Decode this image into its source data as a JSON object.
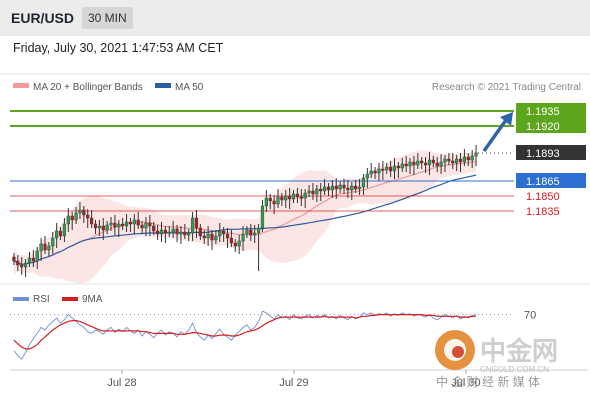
{
  "header": {
    "pair": "EUR/USD",
    "timeframe": "30 MIN",
    "datetime": "Friday, July 30, 2021 1:47:53 AM CET"
  },
  "legend": {
    "ma20_label": "MA 20 + Bollinger Bands",
    "ma50_label": "MA 50",
    "ma20_color": "#f29a9a",
    "ma50_color": "#2b5fa3",
    "credit": "Research © 2021 Trading Central"
  },
  "rsi_legend": {
    "rsi_label": "RSI",
    "ma_label": "9MA",
    "rsi_color": "#6f8fd8",
    "ma_color": "#d42020"
  },
  "watermark": {
    "brand": "中金网",
    "domain": "CNGOLD.COM.CN",
    "tagline": "中 金 财 经 新 媒 体"
  },
  "chart_data": [
    {
      "type": "candlestick",
      "title": "EUR/USD 30 MIN",
      "ylim": [
        1.177,
        1.195
      ],
      "xlabel": "",
      "ylabel": "",
      "x_ticks": [
        "Jul 28",
        "Jul 29",
        "Jul 30"
      ],
      "levels": [
        {
          "value": 1.1935,
          "label": "1.1935",
          "kind": "resistance",
          "color": "#5ea51e"
        },
        {
          "value": 1.192,
          "label": "1.1920",
          "kind": "resistance",
          "color": "#5ea51e"
        },
        {
          "value": 1.1893,
          "label": "1.1893",
          "kind": "last_price",
          "color": "#333333"
        },
        {
          "value": 1.1865,
          "label": "1.1865",
          "kind": "pivot",
          "color": "#2c6fd1"
        },
        {
          "value": 1.185,
          "label": "1.1850",
          "kind": "support",
          "color": "#d42020"
        },
        {
          "value": 1.1835,
          "label": "1.1835",
          "kind": "support",
          "color": "#d42020"
        }
      ],
      "closes": [
        1.1785,
        1.1781,
        1.1779,
        1.1783,
        1.1788,
        1.1785,
        1.1795,
        1.1802,
        1.1796,
        1.18,
        1.1808,
        1.1815,
        1.181,
        1.1822,
        1.183,
        1.1826,
        1.1833,
        1.1836,
        1.1831,
        1.1828,
        1.1822,
        1.1818,
        1.182,
        1.1816,
        1.1821,
        1.1823,
        1.1819,
        1.1822,
        1.182,
        1.1824,
        1.1822,
        1.1826,
        1.1821,
        1.1818,
        1.1823,
        1.182,
        1.1815,
        1.1812,
        1.1816,
        1.1813,
        1.1814,
        1.1817,
        1.1812,
        1.1814,
        1.1811,
        1.1813,
        1.1828,
        1.1818,
        1.181,
        1.1808,
        1.1812,
        1.1806,
        1.181,
        1.1815,
        1.1812,
        1.1808,
        1.1803,
        1.18,
        1.1805,
        1.1812,
        1.1816,
        1.1811,
        1.1813,
        1.1818,
        1.184,
        1.1848,
        1.1845,
        1.1842,
        1.1849,
        1.1846,
        1.185,
        1.1847,
        1.1852,
        1.1849,
        1.1848,
        1.1853,
        1.1855,
        1.1852,
        1.1857,
        1.1855,
        1.1859,
        1.1856,
        1.186,
        1.1857,
        1.1861,
        1.1858,
        1.1856,
        1.186,
        1.1857,
        1.1859,
        1.1868,
        1.1872,
        1.1875,
        1.1873,
        1.1877,
        1.1876,
        1.1879,
        1.1875,
        1.188,
        1.1878,
        1.1882,
        1.188,
        1.1884,
        1.1881,
        1.1885,
        1.1883,
        1.1881,
        1.1886,
        1.1883,
        1.188,
        1.1884,
        1.1887,
        1.1885,
        1.1883,
        1.1887,
        1.1884,
        1.1889,
        1.1886,
        1.189,
        1.1893
      ],
      "ma20_bands_note": "MA 20 with Bollinger Bands (pink envelope)",
      "forecast_arrow": {
        "from": 1.1893,
        "to": 1.1935,
        "direction": "up"
      }
    },
    {
      "type": "line",
      "title": "RSI",
      "ylim": [
        0,
        100
      ],
      "levels": [
        {
          "value": 70,
          "label": "70"
        }
      ],
      "series": [
        {
          "name": "RSI",
          "values": [
            28,
            22,
            18,
            26,
            35,
            42,
            48,
            55,
            52,
            58,
            62,
            66,
            60,
            64,
            70,
            66,
            62,
            58,
            55,
            50,
            48,
            52,
            50,
            47,
            52,
            55,
            49,
            53,
            50,
            55,
            51,
            48,
            52,
            45,
            50,
            47,
            43,
            48,
            52,
            46,
            50,
            48,
            44,
            50,
            47,
            52,
            60,
            49,
            44,
            40,
            46,
            42,
            48,
            53,
            47,
            44,
            40,
            46,
            50,
            55,
            58,
            52,
            55,
            62,
            74,
            72,
            68,
            65,
            70,
            66,
            68,
            64,
            70,
            66,
            65,
            68,
            70,
            66,
            69,
            67,
            70,
            66,
            68,
            65,
            69,
            66,
            64,
            68,
            65,
            67,
            72,
            70,
            72,
            69,
            71,
            70,
            72,
            68,
            71,
            69,
            72,
            70,
            71,
            68,
            70,
            69,
            67,
            70,
            66,
            64,
            67,
            70,
            68,
            66,
            69,
            65,
            68,
            66,
            69,
            70
          ]
        },
        {
          "name": "9MA",
          "values": [
            40,
            36,
            32,
            30,
            30,
            32,
            35,
            40,
            44,
            48,
            52,
            55,
            58,
            60,
            62,
            63,
            63,
            62,
            60,
            58,
            56,
            54,
            52,
            51,
            51,
            51,
            51,
            51,
            51,
            51,
            51,
            51,
            51,
            50,
            50,
            49,
            48,
            48,
            48,
            48,
            48,
            48,
            47,
            47,
            47,
            48,
            49,
            49,
            48,
            47,
            46,
            45,
            45,
            46,
            46,
            46,
            45,
            45,
            46,
            48,
            50,
            51,
            52,
            54,
            57,
            60,
            62,
            64,
            66,
            67,
            67,
            67,
            67,
            67,
            67,
            67,
            67,
            67,
            67,
            67,
            68,
            67,
            67,
            67,
            67,
            67,
            67,
            67,
            66,
            67,
            68,
            68,
            69,
            69,
            70,
            70,
            70,
            70,
            70,
            70,
            70,
            70,
            70,
            70,
            70,
            70,
            69,
            69,
            69,
            68,
            68,
            68,
            68,
            68,
            68,
            67,
            67,
            67,
            68,
            68
          ]
        }
      ]
    }
  ]
}
